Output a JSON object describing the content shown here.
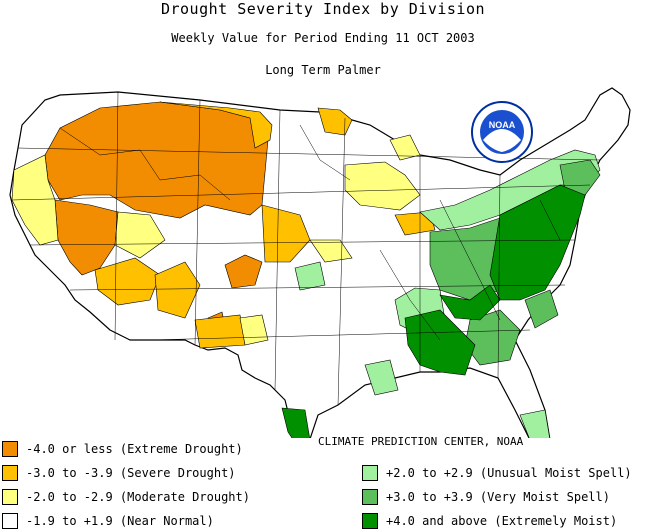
{
  "header": {
    "title": "Drought Severity Index by Division",
    "subtitle": "Weekly Value for Period Ending 11 OCT 2003",
    "index_name": "Long Term Palmer"
  },
  "logo_text": "NOAA",
  "credit": "CLIMATE PREDICTION CENTER, NOAA",
  "legend": [
    {
      "label": "-4.0 or less (Extreme Drought)",
      "color": "#f28c00"
    },
    {
      "label": "-3.0 to -3.9 (Severe Drought)",
      "color": "#ffc000"
    },
    {
      "label": "-2.0 to -2.9 (Moderate Drought)",
      "color": "#ffff80"
    },
    {
      "label": "-1.9 to +1.9 (Near Normal)",
      "color": "#ffffff"
    },
    {
      "label": "+2.0 to +2.9 (Unusual Moist Spell)",
      "color": "#a0f0a0"
    },
    {
      "label": "+3.0 to +3.9 (Very Moist Spell)",
      "color": "#5cbf5c"
    },
    {
      "label": "+4.0 and above (Extremely Moist)",
      "color": "#009000"
    }
  ],
  "colors": {
    "outline": "#000000",
    "background": "#ffffff"
  }
}
